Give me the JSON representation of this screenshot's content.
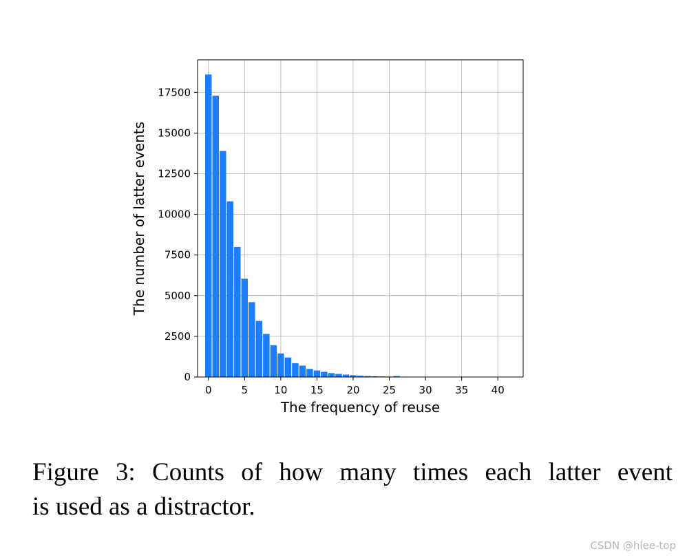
{
  "chart_data": {
    "type": "bar",
    "xlabel": "The frequency of reuse",
    "ylabel": "The number of latter events",
    "xlim": [
      -1.5,
      43.5
    ],
    "ylim": [
      0,
      19500
    ],
    "xticks": [
      0,
      5,
      10,
      15,
      20,
      25,
      30,
      35,
      40
    ],
    "yticks": [
      0,
      2500,
      5000,
      7500,
      10000,
      12500,
      15000,
      17500
    ],
    "grid": true,
    "bar_color": "#1e7dfb",
    "x": [
      0,
      1,
      2,
      3,
      4,
      5,
      6,
      7,
      8,
      9,
      10,
      11,
      12,
      13,
      14,
      15,
      16,
      17,
      18,
      19,
      20,
      21,
      22,
      23,
      24,
      25,
      26,
      27,
      28,
      29,
      30,
      31,
      32,
      33,
      34,
      35,
      36,
      37,
      38,
      39,
      40,
      41
    ],
    "values": [
      18600,
      17300,
      13900,
      10800,
      8000,
      6050,
      4600,
      3450,
      2650,
      1950,
      1450,
      1200,
      850,
      700,
      500,
      400,
      320,
      240,
      190,
      150,
      110,
      80,
      60,
      45,
      35,
      28,
      60,
      18,
      14,
      10,
      8,
      6,
      5,
      4,
      3,
      3,
      2,
      2,
      2,
      1,
      1,
      1
    ]
  },
  "caption": {
    "line1": "Figure 3: Counts of how many times each latter event",
    "line2": "is used as a distractor."
  },
  "watermark": "CSDN @hlee-top"
}
